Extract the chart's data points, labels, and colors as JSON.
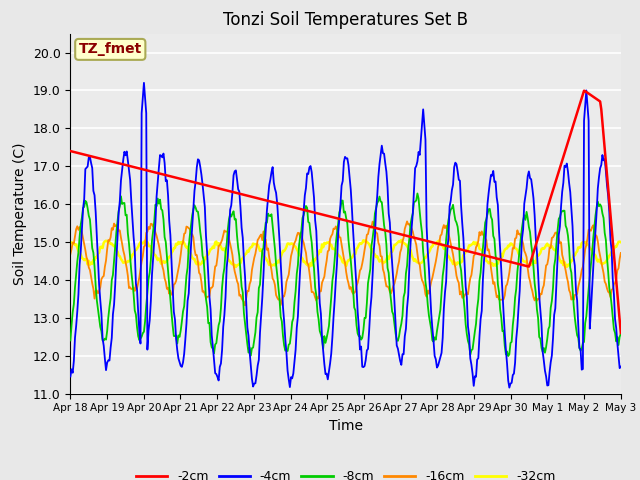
{
  "title": "Tonzi Soil Temperatures Set B",
  "xlabel": "Time",
  "ylabel": "Soil Temperature (C)",
  "ylim_min": 11.0,
  "ylim_max": 20.5,
  "yticks": [
    11.0,
    12.0,
    13.0,
    14.0,
    15.0,
    16.0,
    17.0,
    18.0,
    19.0,
    20.0
  ],
  "bg_color": "#e8e8e8",
  "plot_bg": "#ebebeb",
  "annotation_label": "TZ_fmet",
  "annotation_color": "#8b0000",
  "annotation_bg": "#ffffcc",
  "annotation_border": "#aaaa55",
  "color_2cm": "#ff0000",
  "color_4cm": "#0000ff",
  "color_8cm": "#00cc00",
  "color_16cm": "#ff8800",
  "color_32cm": "#ffff00",
  "legend_labels": [
    "-2cm",
    "-4cm",
    "-8cm",
    "-16cm",
    "-32cm"
  ],
  "x_tick_labels": [
    "Apr 18",
    "Apr 19",
    "Apr 20",
    "Apr 21",
    "Apr 22",
    "Apr 23",
    "Apr 24",
    "Apr 25",
    "Apr 26",
    "Apr 27",
    "Apr 28",
    "Apr 29",
    "Apr 30",
    "May 1",
    "May 2",
    "May 3"
  ],
  "red_line_x": [
    0.0,
    12.5,
    14.0,
    14.45,
    15.0
  ],
  "red_line_y": [
    17.4,
    14.35,
    19.0,
    18.7,
    12.6
  ],
  "t_days": 15,
  "n_points": 480,
  "base_4cm": 14.3,
  "amp_4cm": 2.8,
  "phase_4cm": -1.6,
  "base_8cm": 14.1,
  "amp_8cm": 1.85,
  "phase_8cm": -1.0,
  "base_16cm": 14.45,
  "amp_16cm": 0.9,
  "phase_16cm": 0.2,
  "base_32cm": 14.7,
  "amp_32cm": 0.28,
  "phase_32cm": 1.5
}
